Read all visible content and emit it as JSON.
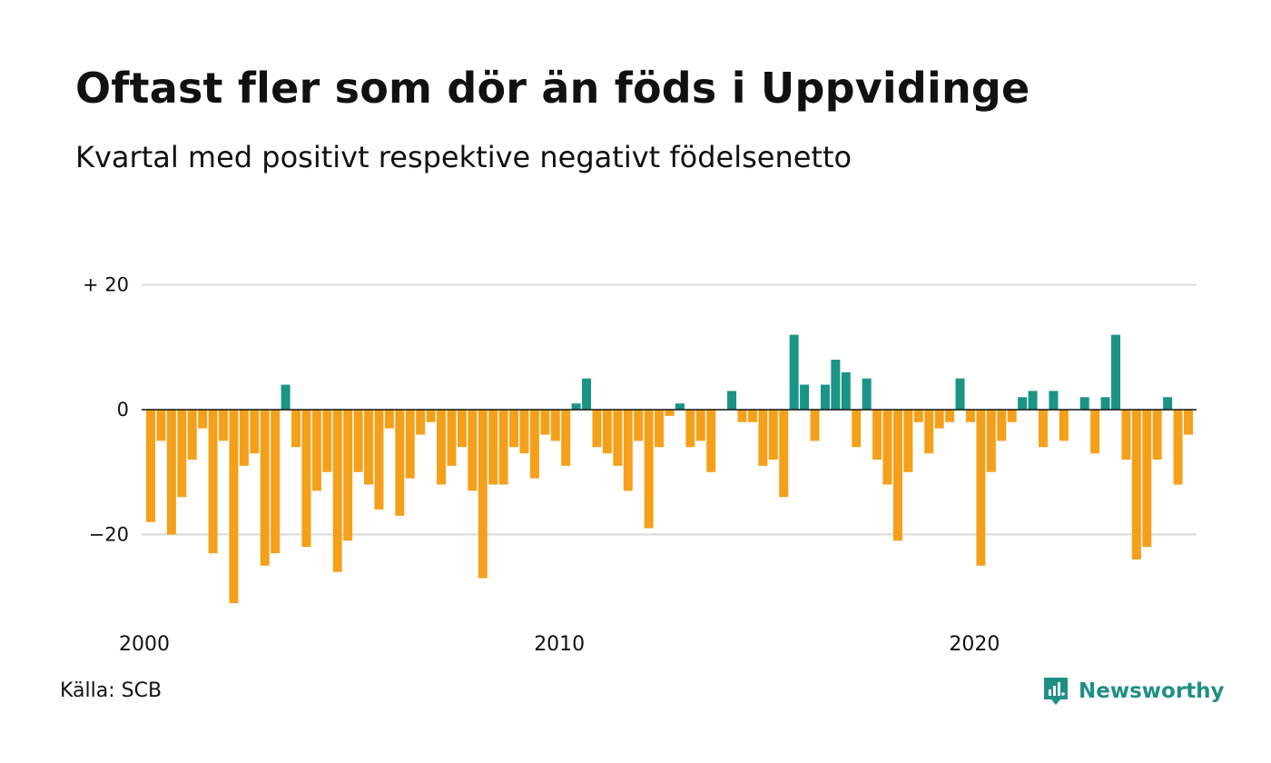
{
  "title": "Oftast fler som dör än föds i Uppvidinge",
  "subtitle": "Kvartal med positivt respektive negativt födelsenetto",
  "source": "Källa: SCB",
  "brand": {
    "name": "Newsworthy",
    "icon": "newsworthy-logo-icon"
  },
  "colors": {
    "positive": "#1a9485",
    "negative": "#f5a01a",
    "grid": "#d9d9d9",
    "zero_line": "#111111"
  },
  "chart_data": {
    "type": "bar",
    "start_year": 2000,
    "start_quarter": 1,
    "x_ticks": [
      "2000",
      "2010",
      "2020"
    ],
    "y_ticks": [
      {
        "value": 20,
        "label": "+ 20"
      },
      {
        "value": 0,
        "label": "0"
      },
      {
        "value": -20,
        "label": "−20"
      }
    ],
    "ylim": [
      -32,
      20
    ],
    "grid": true,
    "values": [
      -18,
      -5,
      -20,
      -14,
      -8,
      -3,
      -23,
      -5,
      -31,
      -9,
      -7,
      -25,
      -23,
      4,
      -6,
      -22,
      -13,
      -10,
      -26,
      -21,
      -10,
      -12,
      -16,
      -3,
      -17,
      -11,
      -4,
      -2,
      -12,
      -9,
      -6,
      -13,
      -27,
      -12,
      -12,
      -6,
      -7,
      -11,
      -4,
      -5,
      -9,
      1,
      5,
      -6,
      -7,
      -9,
      -13,
      -5,
      -19,
      -6,
      -1,
      1,
      -6,
      -5,
      -10,
      0,
      3,
      -2,
      -2,
      -9,
      -8,
      -14,
      12,
      4,
      -5,
      4,
      8,
      6,
      -6,
      5,
      -8,
      -12,
      -21,
      -10,
      -2,
      -7,
      -3,
      -2,
      5,
      -2,
      -25,
      -10,
      -5,
      -2,
      2,
      3,
      -6,
      3,
      -5,
      0,
      2,
      -7,
      2,
      12,
      -8,
      -24,
      -22,
      -8,
      2,
      -12,
      -4
    ]
  }
}
